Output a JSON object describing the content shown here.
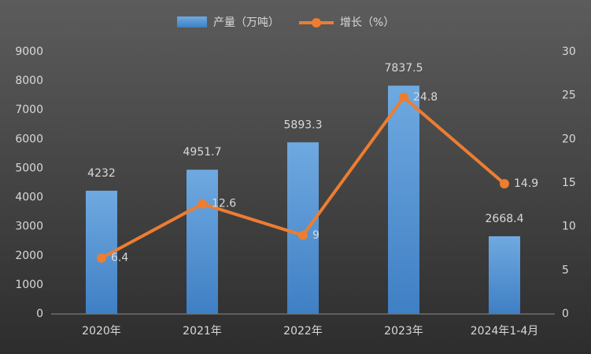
{
  "chart_data": {
    "type": "bar",
    "categories": [
      "2020年",
      "2021年",
      "2022年",
      "2023年",
      "2024年1-4月"
    ],
    "series": [
      {
        "name": "产量（万吨）",
        "type": "bar",
        "color": "#5b9bd5",
        "values": [
          4232,
          4951.7,
          5893.3,
          7837.5,
          2668.4
        ]
      },
      {
        "name": "增长（%）",
        "type": "line",
        "axis": "y2",
        "color": "#ed7d31",
        "values": [
          6.4,
          12.6,
          9,
          24.8,
          14.9
        ]
      }
    ],
    "ylim": [
      0,
      9000
    ],
    "yticks": [
      0,
      1000,
      2000,
      3000,
      4000,
      5000,
      6000,
      7000,
      8000,
      9000
    ],
    "y2lim": [
      0,
      30
    ],
    "y2ticks": [
      0,
      5,
      10,
      15,
      20,
      25,
      30
    ],
    "grid": false
  }
}
